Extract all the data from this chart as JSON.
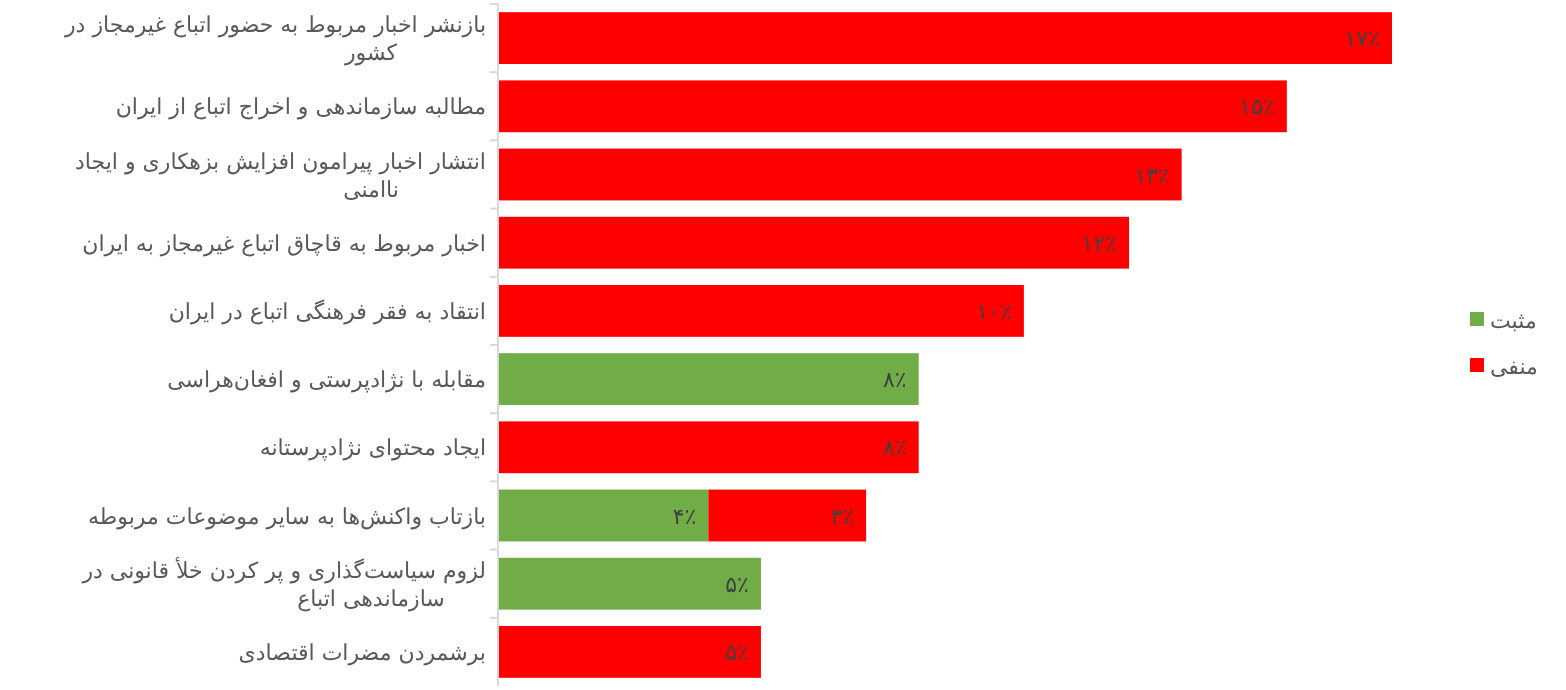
{
  "chart_data": {
    "type": "bar",
    "orientation": "horizontal",
    "stacked": true,
    "legend": "right",
    "categories": [
      "بازنشر اخبار مربوط به حضور اتباع غیرمجاز در کشور",
      "مطالبه سازماندهی و اخراج اتباع از ایران",
      "انتشار اخبار پیرامون افزایش بزهکاری و ایجاد ناامنی",
      "اخبار مربوط به قاچاق اتباع غیرمجاز به ایران",
      "انتقاد به  فقر فرهنگی اتباع در ایران",
      "مقابله با نژادپرستی و افغان‌هراسی",
      "ایجاد محتوای نژادپرستانه",
      "بازتاب واکنش‌ها به سایر موضوعات مربوطه",
      "لزوم سیاست‌گذاری و پر کردن خلأ قانونی در سازماندهی اتباع",
      "برشمردن مضرات اقتصادی"
    ],
    "series": [
      {
        "name": "مثبت",
        "color": "#70ad47",
        "values": [
          null,
          null,
          null,
          null,
          null,
          8,
          null,
          4,
          5,
          null
        ],
        "value_labels": [
          null,
          null,
          null,
          null,
          null,
          "۸٪",
          null,
          "۴٪",
          "۵٪",
          null
        ]
      },
      {
        "name": "منفی",
        "color": "#ff0000",
        "values": [
          17,
          15,
          13,
          12,
          10,
          null,
          8,
          3,
          null,
          5
        ],
        "value_labels": [
          "۱۷٪",
          "۱۵٪",
          "۱۳٪",
          "۱۲٪",
          "۱۰٪",
          null,
          "۸٪",
          "۳٪",
          null,
          "۵٪"
        ]
      }
    ]
  }
}
